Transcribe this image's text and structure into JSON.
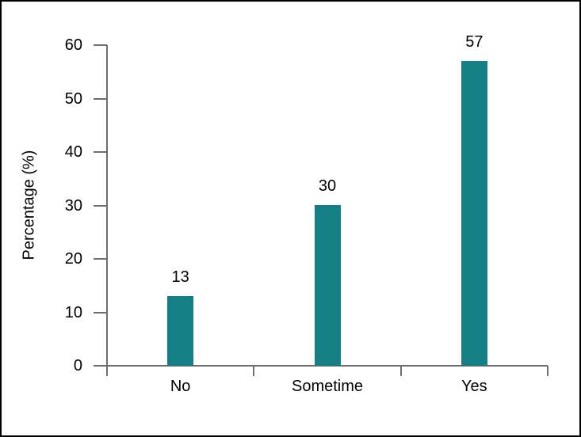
{
  "chart_data": {
    "type": "bar",
    "categories": [
      "No",
      "Sometime",
      "Yes"
    ],
    "values": [
      13,
      30,
      57
    ],
    "data_labels": [
      "13",
      "30",
      "57"
    ],
    "title": "",
    "xlabel": "",
    "ylabel": "Percentage (%)",
    "ylim": [
      0,
      60
    ],
    "yticks": [
      0,
      10,
      20,
      30,
      40,
      50,
      60
    ],
    "ytick_labels": [
      "0",
      "10",
      "20",
      "30",
      "40",
      "50",
      "60"
    ],
    "grid": false,
    "legend": false,
    "bar_color": "#147f85",
    "axis_color": "#6e6e6e",
    "text_color": "#000000",
    "frame_border_color": "#000000"
  }
}
